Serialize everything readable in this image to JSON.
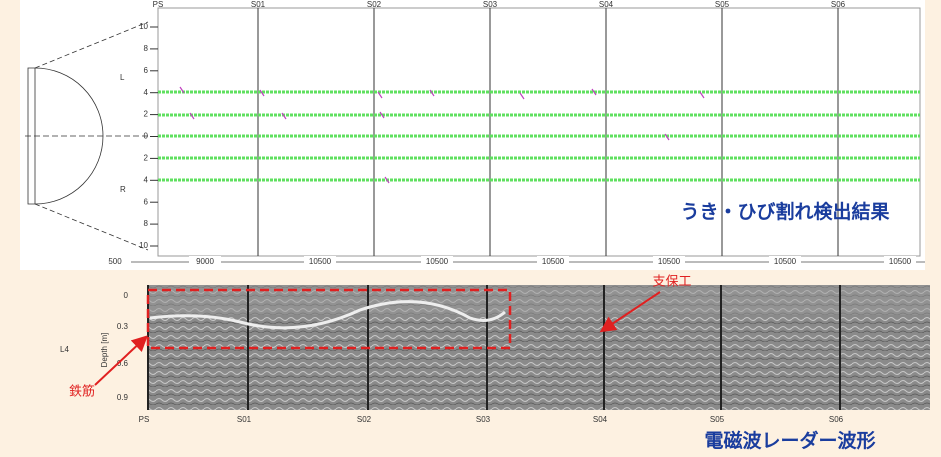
{
  "top_panel": {
    "stations": [
      "PS",
      "S01",
      "S02",
      "S03",
      "S04",
      "S05",
      "S06"
    ],
    "side_labels": {
      "left": "L",
      "right": "R"
    },
    "offset_ticks": [
      "10",
      "8",
      "6",
      "4",
      "2",
      "0",
      "2",
      "4",
      "6",
      "8",
      "10"
    ],
    "distance_labels": [
      "500",
      "9000",
      "10500",
      "10500",
      "10500",
      "10500",
      "10500",
      "10500"
    ],
    "caption": "うき・ひび割れ検出結果"
  },
  "bottom_panel": {
    "stations": [
      "PS",
      "S01",
      "S02",
      "S03",
      "S04",
      "S05",
      "S06"
    ],
    "line_label": "L4",
    "depth_axis_label": "Depth [m]",
    "depth_ticks": [
      "0",
      "0.3",
      "0.6",
      "0.9"
    ],
    "annotations": {
      "support": "支保工",
      "rebar": "鉄筋"
    },
    "caption": "電磁波レーダー波形"
  }
}
